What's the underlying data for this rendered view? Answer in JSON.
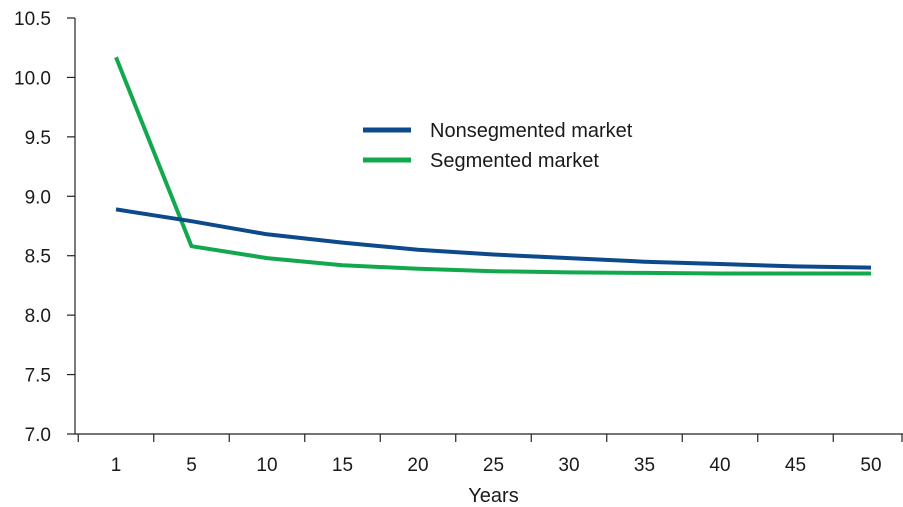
{
  "chart_data": {
    "type": "line",
    "title": "",
    "xlabel": "Years",
    "ylabel": "",
    "x": [
      1,
      5,
      10,
      15,
      20,
      25,
      30,
      35,
      40,
      45,
      50
    ],
    "x_tick_labels": [
      "1",
      "5",
      "10",
      "15",
      "20",
      "25",
      "30",
      "35",
      "40",
      "45",
      "50"
    ],
    "ylim": [
      7.0,
      10.5
    ],
    "y_ticks": [
      7.0,
      7.5,
      8.0,
      8.5,
      9.0,
      9.5,
      10.0,
      10.5
    ],
    "y_tick_labels": [
      "7.0",
      "7.5",
      "8.0",
      "8.5",
      "9.0",
      "9.5",
      "10.0",
      "10.5"
    ],
    "grid": false,
    "legend_position": "top-center",
    "series": [
      {
        "name": "Nonsegmented market",
        "color": "#0d4a8c",
        "values": [
          8.89,
          8.79,
          8.68,
          8.61,
          8.55,
          8.51,
          8.48,
          8.45,
          8.43,
          8.41,
          8.4
        ]
      },
      {
        "name": "Segmented market",
        "color": "#12a94e",
        "values": [
          10.17,
          8.58,
          8.48,
          8.42,
          8.39,
          8.37,
          8.36,
          8.355,
          8.35,
          8.35,
          8.35
        ]
      }
    ]
  }
}
